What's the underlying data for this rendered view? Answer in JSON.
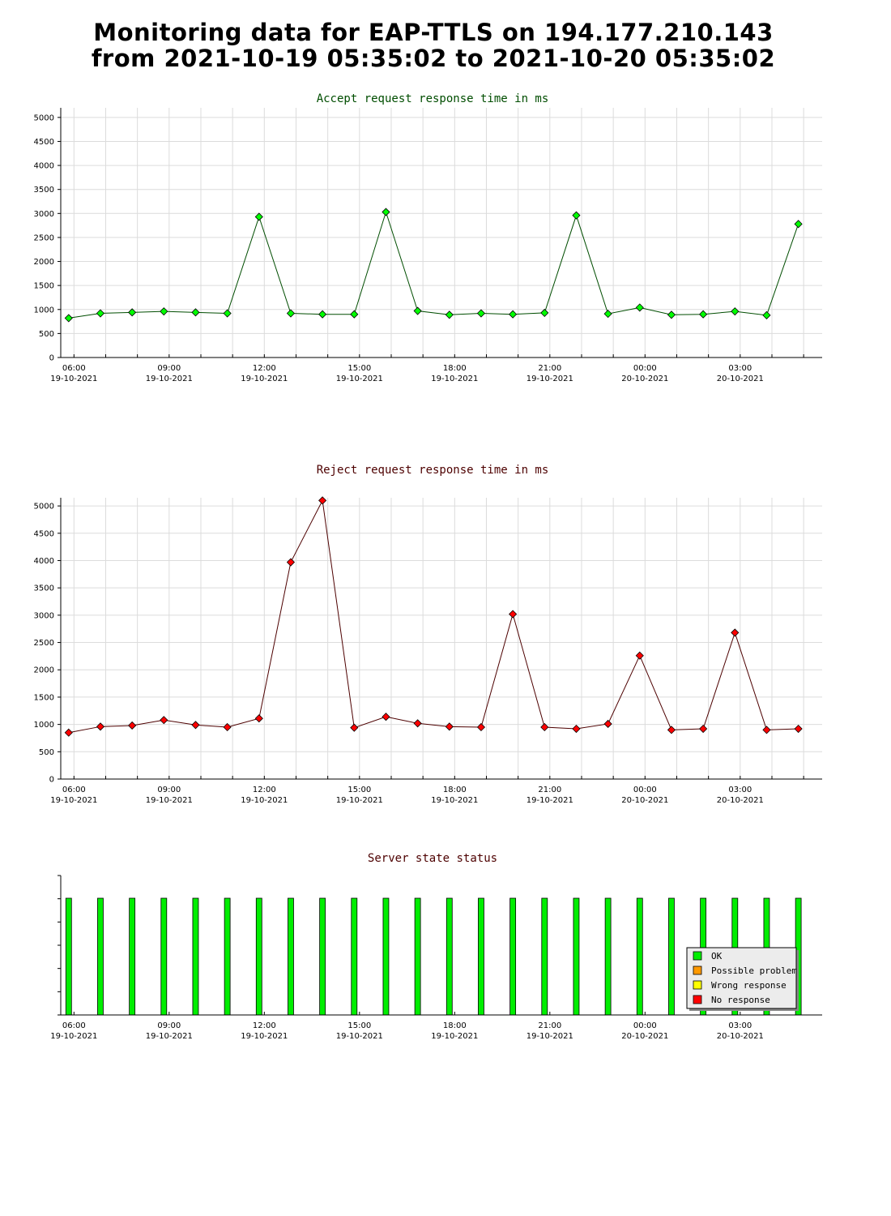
{
  "header": {
    "title_line1": "Monitoring data for EAP-TTLS on 194.177.210.143",
    "title_line2": "from 2021-10-19 05:35:02 to 2021-10-20 05:35:02"
  },
  "colors": {
    "accept_title": "#004d00",
    "reject_title": "#4d0000",
    "status_title": "#4d0000",
    "accept_line": "#004d00",
    "accept_marker": "#00ff00",
    "reject_line": "#4d0000",
    "reject_marker": "#ff0000",
    "ok": "#00ee00",
    "possible_problem": "#ff9900",
    "wrong_response": "#ffff00",
    "no_response": "#ff0000",
    "grid": "#dcdcdc"
  },
  "chart_data": [
    {
      "id": "accept",
      "type": "line",
      "title": "Accept request response time in ms",
      "ylim": [
        0,
        5200
      ],
      "yticks": [
        0,
        500,
        1000,
        1500,
        2000,
        2500,
        3000,
        3500,
        4000,
        4500,
        5000
      ],
      "x_hours": [
        0.25,
        1.25,
        2.25,
        3.25,
        4.25,
        5.25,
        6.25,
        7.25,
        8.25,
        9.25,
        10.25,
        11.25,
        12.25,
        13.25,
        14.25,
        15.25,
        16.25,
        17.25,
        18.25,
        19.25,
        20.25,
        21.25,
        22.25,
        23.25
      ],
      "values": [
        820,
        920,
        940,
        960,
        940,
        920,
        2930,
        920,
        900,
        900,
        3030,
        970,
        890,
        920,
        900,
        930,
        2960,
        910,
        1040,
        890,
        900,
        960,
        880,
        2780
      ],
      "grid": true
    },
    {
      "id": "reject",
      "type": "line",
      "title": "Reject request response time in ms",
      "ylim": [
        0,
        5150
      ],
      "yticks": [
        0,
        500,
        1000,
        1500,
        2000,
        2500,
        3000,
        3500,
        4000,
        4500,
        5000
      ],
      "x_hours": [
        0.25,
        1.25,
        2.25,
        3.25,
        4.25,
        5.25,
        6.25,
        7.25,
        8.25,
        9.25,
        10.25,
        11.25,
        12.25,
        13.25,
        14.25,
        15.25,
        16.25,
        17.25,
        18.25,
        19.25,
        20.25,
        21.25,
        22.25,
        23.25
      ],
      "values": [
        850,
        960,
        980,
        1080,
        990,
        950,
        1110,
        3970,
        5100,
        940,
        1140,
        1020,
        960,
        950,
        3020,
        950,
        920,
        1010,
        2260,
        900,
        920,
        2680,
        900,
        920
      ],
      "grid": true
    },
    {
      "id": "status",
      "type": "bar",
      "title": "Server state status",
      "x_hours": [
        0.25,
        1.25,
        2.25,
        3.25,
        4.25,
        5.25,
        6.25,
        7.25,
        8.25,
        9.25,
        10.25,
        11.25,
        12.25,
        13.25,
        14.25,
        15.25,
        16.25,
        17.25,
        18.25,
        19.25,
        20.25,
        21.25,
        22.25,
        23.25
      ],
      "states": [
        "OK",
        "OK",
        "OK",
        "OK",
        "OK",
        "OK",
        "OK",
        "OK",
        "OK",
        "OK",
        "OK",
        "OK",
        "OK",
        "OK",
        "OK",
        "OK",
        "OK",
        "OK",
        "OK",
        "OK",
        "OK",
        "OK",
        "OK",
        "OK"
      ],
      "legend": [
        {
          "key": "OK",
          "label": "OK"
        },
        {
          "key": "possible_problem",
          "label": "Possible problem"
        },
        {
          "key": "wrong_response",
          "label": "Wrong response"
        },
        {
          "key": "no_response",
          "label": "No response"
        }
      ],
      "legend_placement": "bottom-right"
    }
  ],
  "x_axis": {
    "labels": [
      {
        "time": "06:00",
        "date": "19-10-2021",
        "hour": 0.4167
      },
      {
        "time": "09:00",
        "date": "19-10-2021",
        "hour": 3.4167
      },
      {
        "time": "12:00",
        "date": "19-10-2021",
        "hour": 6.4167
      },
      {
        "time": "15:00",
        "date": "19-10-2021",
        "hour": 9.4167
      },
      {
        "time": "18:00",
        "date": "19-10-2021",
        "hour": 12.4167
      },
      {
        "time": "21:00",
        "date": "19-10-2021",
        "hour": 15.4167
      },
      {
        "time": "00:00",
        "date": "20-10-2021",
        "hour": 18.4167
      },
      {
        "time": "03:00",
        "date": "20-10-2021",
        "hour": 21.4167
      }
    ],
    "hours_span": 24
  }
}
